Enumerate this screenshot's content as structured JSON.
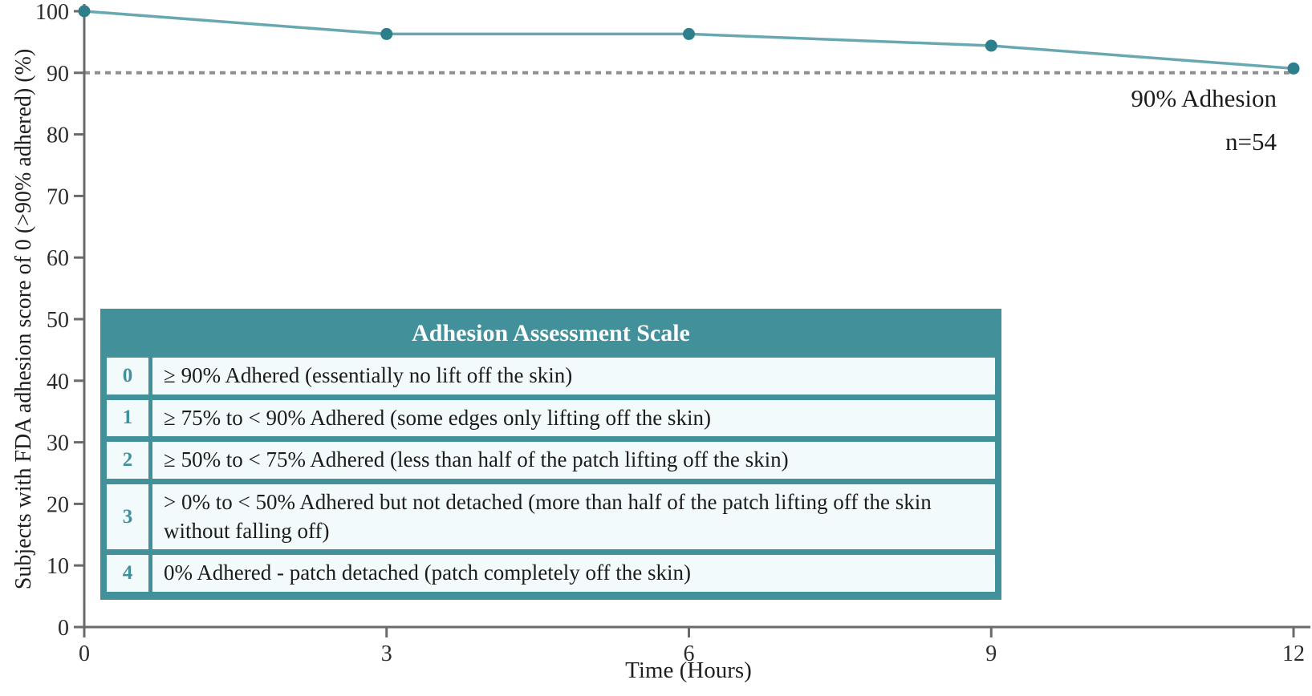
{
  "chart_data": {
    "type": "line",
    "x": [
      0,
      3,
      6,
      9,
      12
    ],
    "series": [
      {
        "name": "Subjects with FDA adhesion score of 0",
        "values": [
          100,
          96.3,
          96.3,
          94.4,
          90.7
        ]
      }
    ],
    "title": "",
    "xlabel": "Time (Hours)",
    "ylabel": "Subjects with FDA adhesion score of 0 (>90% adhered) (%)",
    "xlim": [
      0,
      12
    ],
    "ylim": [
      0,
      100
    ],
    "xticks": [
      0,
      3,
      6,
      9,
      12
    ],
    "yticks": [
      0,
      10,
      20,
      30,
      40,
      50,
      60,
      70,
      80,
      90,
      100
    ],
    "grid": false,
    "legend": "none",
    "reference_line": {
      "y": 90,
      "style": "dashed",
      "label": "90% Adhesion"
    },
    "line_color": "#69a8b0",
    "marker_color": "#2e7f8c",
    "reference_color": "#8f8f8f",
    "axis_color": "#6a6a6a"
  },
  "annotation": {
    "line1": "90% Adhesion",
    "line2": "n=54"
  },
  "scale_table": {
    "title": "Adhesion Assessment Scale",
    "header_bg": "#41909a",
    "rows": [
      {
        "score": "0",
        "description": "≥ 90% Adhered (essentially no lift off the skin)"
      },
      {
        "score": "1",
        "description": "≥ 75% to < 90% Adhered (some edges only lifting off the skin)"
      },
      {
        "score": "2",
        "description": "≥ 50% to < 75% Adhered (less than half of the patch lifting off the skin)"
      },
      {
        "score": "3",
        "description": "> 0% to < 50% Adhered but not detached (more than half of the patch lifting off the skin without falling off)"
      },
      {
        "score": "4",
        "description": "0% Adhered - patch detached (patch completely off the skin)"
      }
    ]
  }
}
